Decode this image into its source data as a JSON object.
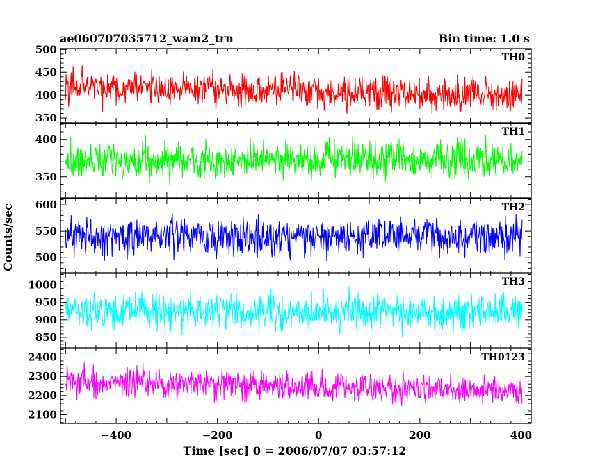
{
  "chart_data": {
    "type": "line",
    "title": "ae060707035712_wam2_trn",
    "bin_time": "Bin time: 1.0 s",
    "xlabel": "Time [sec] 0 = 2006/07/07 03:57:12",
    "ylabel": "Counts/sec",
    "xlim": [
      -510,
      420
    ],
    "x_data_range": [
      -500,
      402
    ],
    "x_ticks": [
      -400,
      -200,
      0,
      200,
      400
    ],
    "x_tick_labels": [
      "−400",
      "−200",
      "0",
      "200",
      "400"
    ],
    "grid": false,
    "panels": [
      {
        "name": "TH0",
        "color": "#ff0000",
        "ylim": [
          338,
          502
        ],
        "y_ticks": [
          350,
          400,
          450,
          500
        ],
        "y_tick_labels": [
          "350",
          "400",
          "450",
          "500"
        ],
        "mean_start": 420,
        "mean_end": 398,
        "spread": 24
      },
      {
        "name": "TH1",
        "color": "#00ff00",
        "ylim": [
          322,
          422
        ],
        "y_ticks": [
          350,
          400
        ],
        "y_tick_labels": [
          "350",
          "400"
        ],
        "mean_start": 372,
        "mean_end": 372,
        "spread": 15
      },
      {
        "name": "TH2",
        "color": "#0000ff",
        "ylim": [
          470,
          612
        ],
        "y_ticks": [
          500,
          550,
          600
        ],
        "y_tick_labels": [
          "500",
          "550",
          "600"
        ],
        "mean_start": 540,
        "mean_end": 540,
        "spread": 22
      },
      {
        "name": "TH3",
        "color": "#00ffff",
        "ylim": [
          820,
          1035
        ],
        "y_ticks": [
          850,
          900,
          950,
          1000
        ],
        "y_tick_labels": [
          "850",
          "900",
          "950",
          "1000"
        ],
        "mean_start": 925,
        "mean_end": 922,
        "spread": 32
      },
      {
        "name": "TH0123",
        "color": "#ff00ff",
        "ylim": [
          2055,
          2445
        ],
        "y_ticks": [
          2100,
          2200,
          2300,
          2400
        ],
        "y_tick_labels": [
          "2100",
          "2200",
          "2300",
          "2400"
        ],
        "mean_start": 2270,
        "mean_end": 2225,
        "spread": 48
      }
    ]
  }
}
